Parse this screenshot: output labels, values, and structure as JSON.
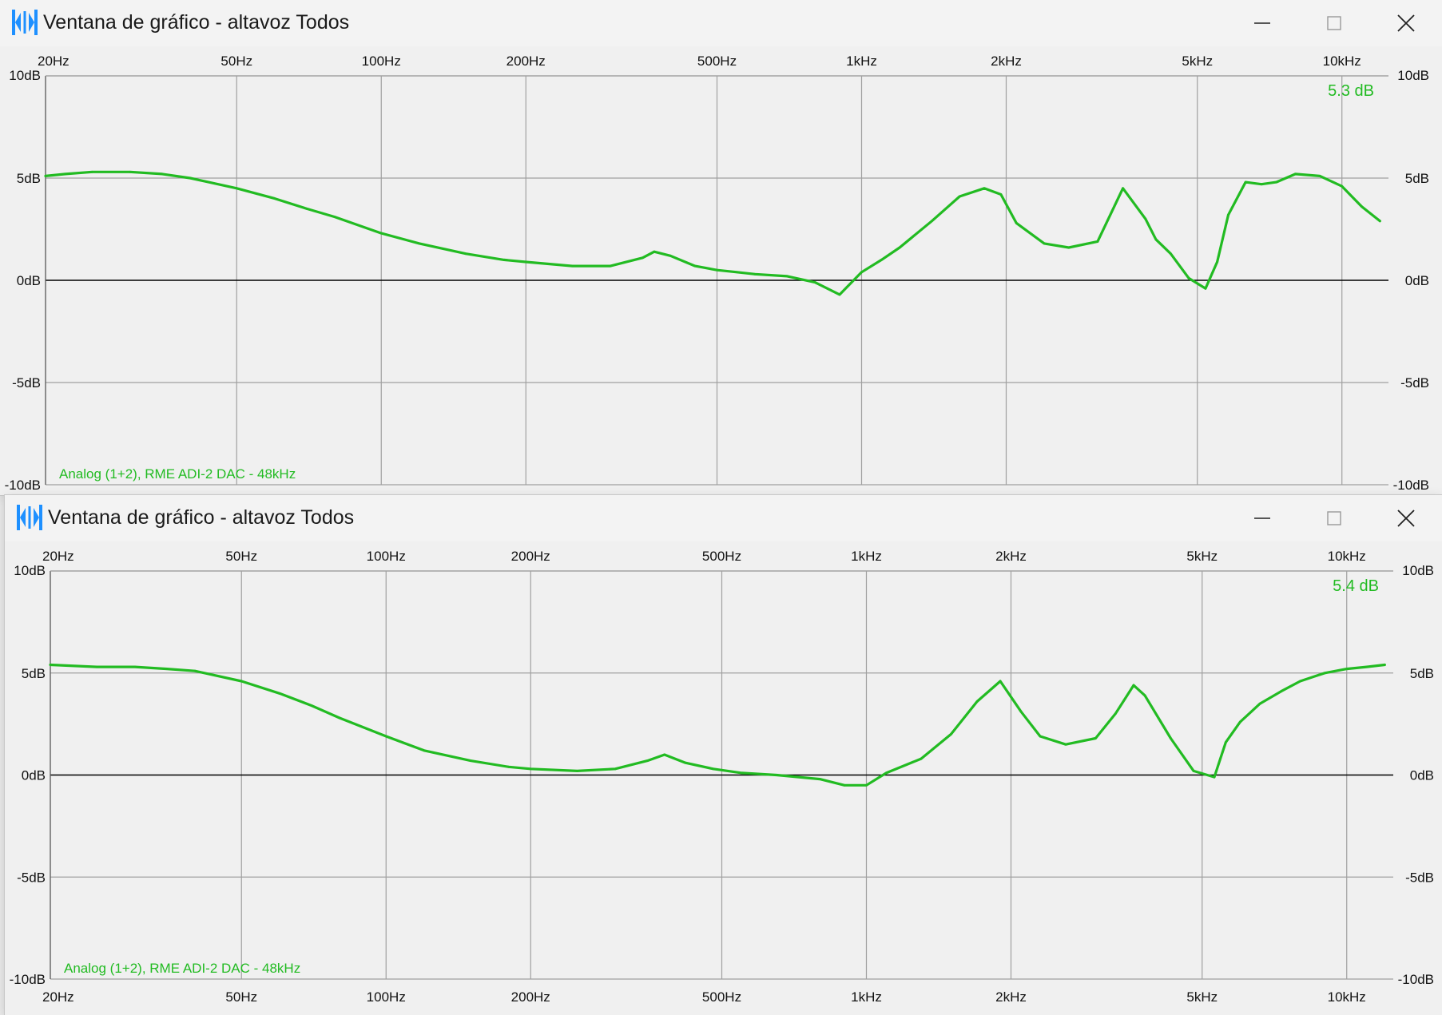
{
  "windows": [
    {
      "title": "Ventana de gráfico - altavoz Todos",
      "value_label": "5.3 dB",
      "device_label": "Analog (1+2), RME ADI-2 DAC - 48kHz",
      "show_bottom_axis": false
    },
    {
      "title": "Ventana de gráfico - altavoz Todos",
      "value_label": "5.4 dB",
      "device_label": "Analog (1+2), RME ADI-2 DAC - 48kHz",
      "show_bottom_axis": true
    }
  ],
  "colors": {
    "curve": "#22bb22",
    "grid": "#a0a0a0",
    "zero_line": "#000000",
    "label_green": "#22bb22",
    "plot_bg": "#f0f0f0",
    "icon_blue": "#1e90ff"
  },
  "icons": {
    "app": "waveform-app-icon",
    "minimize": "minimize-icon",
    "maximize": "maximize-icon",
    "close": "close-icon"
  },
  "chart_data": [
    {
      "type": "line",
      "x_scale": "log",
      "x_ticks": [
        20,
        50,
        100,
        200,
        500,
        1000,
        2000,
        5000,
        10000
      ],
      "x_tick_labels": [
        "20Hz",
        "50Hz",
        "100Hz",
        "200Hz",
        "500Hz",
        "1kHz",
        "2kHz",
        "5kHz",
        "10kHz"
      ],
      "y_ticks": [
        10,
        5,
        0,
        -5,
        -10
      ],
      "y_tick_labels": [
        "10dB",
        "5dB",
        "0dB",
        "-5dB",
        "-10dB"
      ],
      "ylim": [
        -10,
        10
      ],
      "xlim": [
        20,
        12500
      ],
      "grid": true,
      "series": [
        {
          "x": [
            20,
            22,
            25,
            30,
            35,
            40,
            50,
            60,
            70,
            80,
            100,
            120,
            150,
            180,
            200,
            250,
            300,
            350,
            370,
            400,
            450,
            500,
            550,
            600,
            700,
            800,
            900,
            1000,
            1100,
            1200,
            1400,
            1600,
            1800,
            1950,
            2100,
            2400,
            2700,
            3100,
            3500,
            3900,
            4100,
            4400,
            4800,
            5200,
            5500,
            5800,
            6300,
            6800,
            7300,
            8000,
            9000,
            10000,
            11000,
            12000
          ],
          "y": [
            5.1,
            5.2,
            5.3,
            5.3,
            5.2,
            5.0,
            4.5,
            4.0,
            3.5,
            3.1,
            2.3,
            1.8,
            1.3,
            1.0,
            0.9,
            0.7,
            0.7,
            1.1,
            1.4,
            1.2,
            0.7,
            0.5,
            0.4,
            0.3,
            0.2,
            -0.1,
            -0.7,
            0.4,
            1.0,
            1.6,
            2.9,
            4.1,
            4.5,
            4.2,
            2.8,
            1.8,
            1.6,
            1.9,
            4.5,
            3.0,
            2.0,
            1.3,
            0.1,
            -0.4,
            0.9,
            3.2,
            4.8,
            4.7,
            4.8,
            5.2,
            5.1,
            4.6,
            3.6,
            2.9
          ]
        }
      ]
    },
    {
      "type": "line",
      "x_scale": "log",
      "x_ticks": [
        20,
        50,
        100,
        200,
        500,
        1000,
        2000,
        5000,
        10000
      ],
      "x_tick_labels": [
        "20Hz",
        "50Hz",
        "100Hz",
        "200Hz",
        "500Hz",
        "1kHz",
        "2kHz",
        "5kHz",
        "10kHz"
      ],
      "y_ticks": [
        10,
        5,
        0,
        -5,
        -10
      ],
      "y_tick_labels": [
        "10dB",
        "5dB",
        "0dB",
        "-5dB",
        "-10dB"
      ],
      "ylim": [
        -10,
        10
      ],
      "xlim": [
        20,
        12500
      ],
      "grid": true,
      "series": [
        {
          "x": [
            20,
            25,
            30,
            35,
            40,
            50,
            60,
            70,
            80,
            100,
            120,
            150,
            180,
            200,
            250,
            300,
            350,
            380,
            420,
            480,
            550,
            650,
            800,
            900,
            1000,
            1100,
            1300,
            1500,
            1700,
            1900,
            2100,
            2300,
            2600,
            3000,
            3300,
            3600,
            3800,
            4300,
            4800,
            5300,
            5600,
            6000,
            6600,
            7300,
            8000,
            9000,
            10000,
            11000,
            12000
          ],
          "y": [
            5.4,
            5.3,
            5.3,
            5.2,
            5.1,
            4.6,
            4.0,
            3.4,
            2.8,
            1.9,
            1.2,
            0.7,
            0.4,
            0.3,
            0.2,
            0.3,
            0.7,
            1.0,
            0.6,
            0.3,
            0.1,
            0.0,
            -0.2,
            -0.5,
            -0.5,
            0.1,
            0.8,
            2.0,
            3.6,
            4.6,
            3.1,
            1.9,
            1.5,
            1.8,
            3.0,
            4.4,
            3.9,
            1.8,
            0.2,
            -0.1,
            1.6,
            2.6,
            3.5,
            4.1,
            4.6,
            5.0,
            5.2,
            5.3,
            5.4
          ]
        }
      ]
    }
  ]
}
